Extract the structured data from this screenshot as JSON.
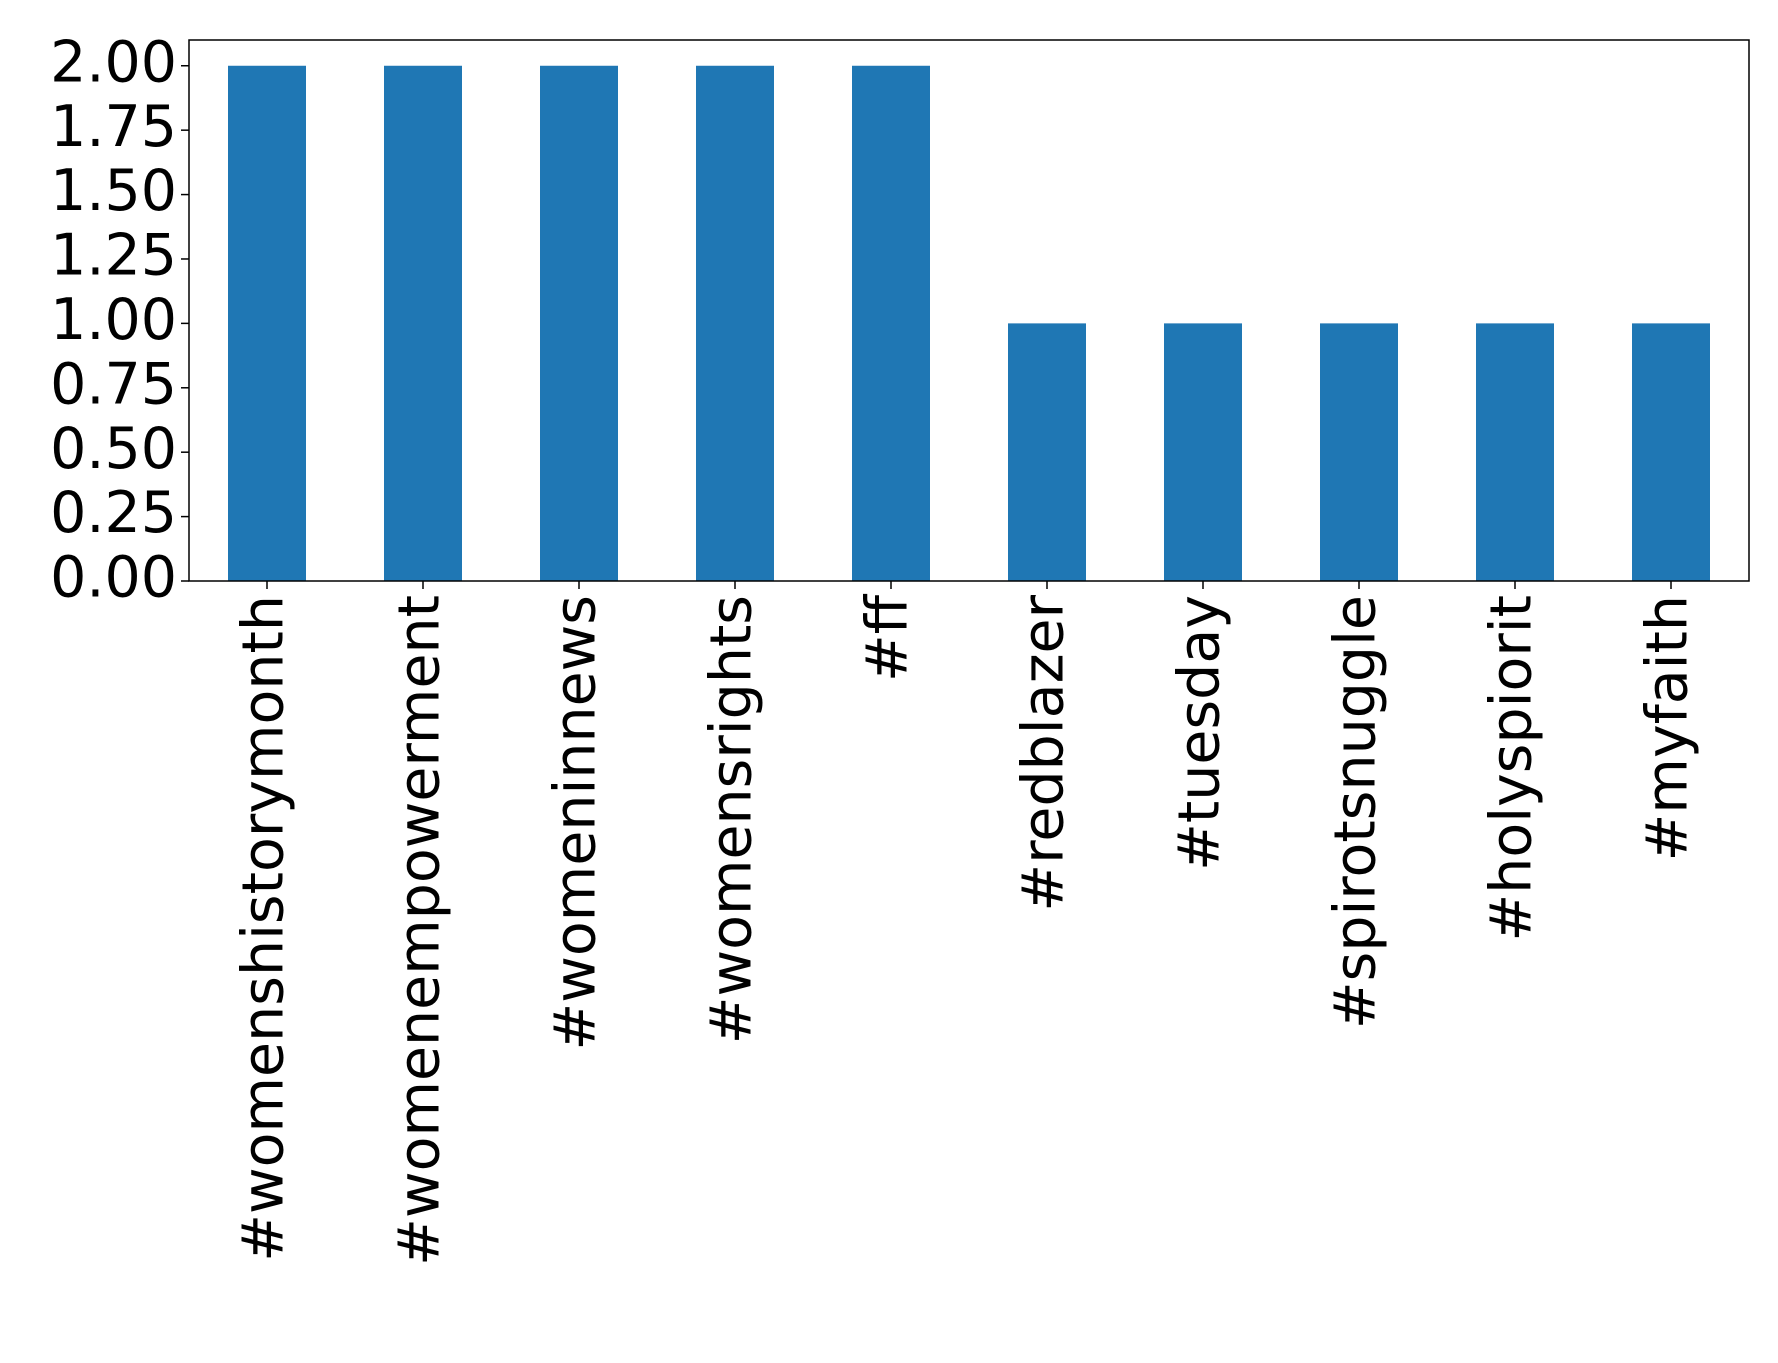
{
  "chart_data": {
    "type": "bar",
    "categories": [
      "#womenshistorymonth",
      "#womenempowerment",
      "#womeninnews",
      "#womensrights",
      "#ff",
      "#redblazer",
      "#tuesday",
      "#spirotsnuggle",
      "#holyspiorit",
      "#myfaith"
    ],
    "values": [
      2,
      2,
      2,
      2,
      2,
      1,
      1,
      1,
      1,
      1
    ],
    "color": "#1f77b4",
    "ylim": [
      0,
      2.1
    ],
    "yticks": [
      {
        "value": 0,
        "label": "0.00"
      },
      0.25,
      {
        "value": 0.5,
        "label": "0.50"
      },
      0.75,
      {
        "value": 1,
        "label": "1.00"
      },
      1.25,
      {
        "value": 1.5,
        "label": "1.50"
      },
      1.75,
      {
        "value": 2,
        "label": "2.00"
      }
    ],
    "grid": false
  }
}
